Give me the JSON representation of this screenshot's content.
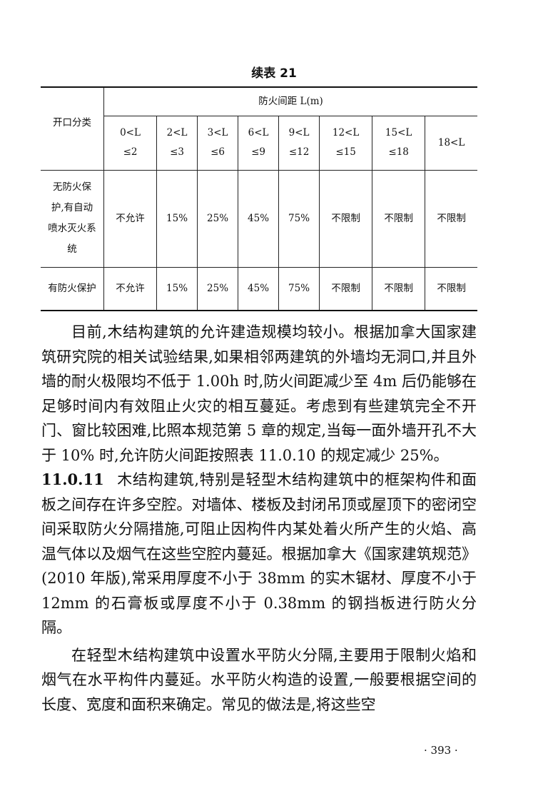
{
  "caption": "续表 21",
  "table": {
    "row_header": "开口分类",
    "group_header": "防火间距 L(m)",
    "columns": [
      [
        "0<L",
        "≤2"
      ],
      [
        "2<L",
        "≤3"
      ],
      [
        "3<L",
        "≤6"
      ],
      [
        "6<L",
        "≤9"
      ],
      [
        "9<L",
        "≤12"
      ],
      [
        "12<L",
        "≤15"
      ],
      [
        "15<L",
        "≤18"
      ],
      [
        "18<L",
        ""
      ]
    ],
    "rows": [
      {
        "label": "无防火保护,有自动喷水灭火系统",
        "cells": [
          "不允许",
          "15%",
          "25%",
          "45%",
          "75%",
          "不限制",
          "不限制",
          "不限制"
        ]
      },
      {
        "label": "有防火保护",
        "cells": [
          "不允许",
          "15%",
          "25%",
          "45%",
          "75%",
          "不限制",
          "不限制",
          "不限制"
        ]
      }
    ]
  },
  "paragraphs": [
    {
      "text": "目前,木结构建筑的允许建造规模均较小。根据加拿大国家建筑研究院的相关试验结果,如果相邻两建筑的外墙均无洞口,并且外墙的耐火极限均不低于 1.00h 时,防火间距减少至 4m 后仍能够在足够时间内有效阻止火灾的相互蔓延。考虑到有些建筑完全不开门、窗比较困难,比照本规范第 5 章的规定,当每一面外墙开孔不大于 10% 时,允许防火间距按照表 11.0.10 的规定减少 25%。"
    },
    {
      "section": "11.0.11",
      "text": "木结构建筑,特别是轻型木结构建筑中的框架构件和面板之间存在许多空腔。对墙体、楼板及封闭吊顶或屋顶下的密闭空间采取防火分隔措施,可阻止因构件内某处着火所产生的火焰、高温气体以及烟气在这些空腔内蔓延。根据加拿大《国家建筑规范》(2010 年版),常采用厚度不小于 38mm 的实木锯材、厚度不小于 12mm 的石膏板或厚度不小于 0.38mm 的钢挡板进行防火分隔。"
    },
    {
      "text": "在轻型木结构建筑中设置水平防火分隔,主要用于限制火焰和烟气在水平构件内蔓延。水平防火构造的设置,一般要根据空间的长度、宽度和面积来确定。常见的做法是,将这些空"
    }
  ],
  "page_number": "· 393 ·"
}
